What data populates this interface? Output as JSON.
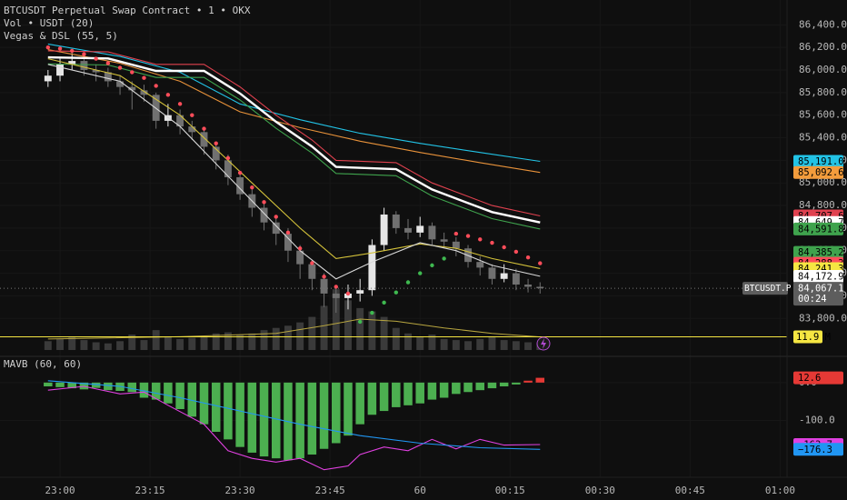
{
  "chart_data": [
    {
      "type": "candlestick",
      "title": "BTCUSDT Perpetual Swap Contract • 1 • OKX",
      "indicators": [
        "Vol • USDT (20)",
        "Vegas & DSL (55, 5)"
      ],
      "x": [
        -2,
        0,
        2,
        4,
        6,
        8,
        10,
        12,
        14,
        16,
        18,
        20,
        22,
        24,
        26,
        28,
        30,
        32,
        34,
        36,
        38,
        40,
        42,
        44,
        46,
        48,
        50,
        52,
        54,
        56,
        58,
        60,
        62,
        64,
        66,
        68,
        70,
        72,
        74,
        76,
        78,
        80
      ],
      "open": [
        85900,
        85950,
        86050,
        86080,
        86000,
        85980,
        85900,
        85850,
        85820,
        85780,
        85550,
        85600,
        85500,
        85450,
        85320,
        85200,
        85050,
        84900,
        84780,
        84650,
        84550,
        84400,
        84280,
        84150,
        84020,
        83980,
        84020,
        84050,
        84450,
        84720,
        84600,
        84560,
        84620,
        84500,
        84480,
        84420,
        84300,
        84250,
        84150,
        84200,
        84100,
        84080
      ],
      "high": [
        86000,
        86100,
        86150,
        86120,
        86050,
        86020,
        85950,
        85900,
        85870,
        85800,
        85700,
        85650,
        85550,
        85480,
        85360,
        85250,
        85080,
        84950,
        84820,
        84700,
        84600,
        84450,
        84320,
        84200,
        84080,
        84100,
        84150,
        84500,
        84780,
        84750,
        84680,
        84700,
        84650,
        84560,
        84520,
        84450,
        84350,
        84280,
        84280,
        84240,
        84150,
        84120
      ],
      "low": [
        85850,
        85900,
        86000,
        85950,
        85900,
        85850,
        85780,
        85650,
        85720,
        85480,
        85500,
        85430,
        85380,
        85250,
        85120,
        84980,
        84850,
        84700,
        84580,
        84450,
        84300,
        84150,
        84050,
        83900,
        83850,
        83880,
        83950,
        84000,
        84400,
        84550,
        84500,
        84520,
        84450,
        84420,
        84350,
        84250,
        84180,
        84100,
        84120,
        84050,
        84030,
        84020
      ],
      "close": [
        85950,
        86050,
        86080,
        86000,
        85980,
        85900,
        85850,
        85820,
        85780,
        85550,
        85600,
        85500,
        85450,
        85320,
        85200,
        85050,
        84900,
        84780,
        84650,
        84550,
        84400,
        84280,
        84150,
        84020,
        83980,
        84020,
        84050,
        84450,
        84720,
        84600,
        84560,
        84620,
        84500,
        84480,
        84420,
        84300,
        84250,
        84150,
        84200,
        84100,
        84080,
        84067.1
      ],
      "up_color": "#e6e6e6",
      "down_color": "#707070",
      "volume": [
        8,
        10,
        12,
        9,
        7,
        6,
        8,
        14,
        9,
        18,
        12,
        10,
        11,
        13,
        15,
        16,
        14,
        15,
        18,
        20,
        22,
        25,
        30,
        40,
        55,
        45,
        38,
        35,
        30,
        20,
        15,
        12,
        14,
        10,
        9,
        8,
        10,
        12,
        9,
        8,
        7,
        6
      ],
      "volume_color": "#3a3a3a",
      "volume_lim": [
        0,
        70
      ],
      "volume_ma": {
        "x": [
          -2,
          20,
          36,
          44,
          50,
          56,
          64,
          72,
          80
        ],
        "values": [
          10,
          12,
          15,
          22,
          28,
          26,
          20,
          15,
          11.9
        ],
        "color": "#b8a640"
      },
      "volume_label": {
        "value": 11.9,
        "label": "11.9 M",
        "color": "#f5e642"
      },
      "series": [
        {
          "style": "line",
          "color": "#22c3e6",
          "x": [
            -2,
            10,
            20,
            30,
            40,
            50,
            60,
            70,
            80
          ],
          "values": [
            86230,
            86120,
            85980,
            85700,
            85560,
            85440,
            85350,
            85270,
            85191.0
          ]
        },
        {
          "style": "line",
          "color": "#e8923a",
          "x": [
            -2,
            10,
            20,
            30,
            40,
            50,
            60,
            70,
            80
          ],
          "values": [
            86180,
            86060,
            85900,
            85630,
            85490,
            85370,
            85270,
            85180,
            85092.6
          ]
        },
        {
          "style": "line",
          "color": "#e0414f",
          "x": [
            -2,
            8,
            16,
            24,
            30,
            36,
            42,
            46,
            56,
            62,
            66,
            72,
            80
          ],
          "values": [
            86170,
            86160,
            86050,
            86050,
            85850,
            85600,
            85380,
            85200,
            85180,
            85000,
            84920,
            84800,
            84707.6
          ]
        },
        {
          "style": "thick",
          "color": "#ffffff",
          "x": [
            -2,
            8,
            16,
            24,
            30,
            36,
            42,
            46,
            56,
            62,
            66,
            72,
            80
          ],
          "values": [
            86112,
            86102,
            85992,
            85992,
            85792,
            85542,
            85322,
            85142,
            85122,
            84942,
            84862,
            84742,
            84649.7
          ]
        },
        {
          "style": "line",
          "color": "#3fa34d",
          "x": [
            -2,
            8,
            16,
            24,
            30,
            36,
            42,
            46,
            56,
            62,
            66,
            72,
            80
          ],
          "values": [
            86054,
            86044,
            85934,
            85934,
            85734,
            85484,
            85264,
            85084,
            85064,
            84884,
            84804,
            84684,
            84591.8
          ]
        },
        {
          "style": "line",
          "color": "#d4c23a",
          "x": [
            -2,
            10,
            20,
            30,
            40,
            46,
            52,
            60,
            66,
            72,
            80
          ],
          "values": [
            86100,
            85950,
            85600,
            85100,
            84600,
            84330,
            84380,
            84460,
            84420,
            84330,
            84241.3
          ]
        },
        {
          "style": "line",
          "color": "#d8d8d8",
          "x": [
            -2,
            10,
            20,
            30,
            40,
            46,
            52,
            60,
            66,
            72,
            80
          ],
          "values": [
            86050,
            85900,
            85500,
            84950,
            84400,
            84150,
            84300,
            84470,
            84400,
            84270,
            84172.9
          ]
        },
        {
          "style": "dots",
          "color": "#ff4d5a",
          "x": [
            -2,
            0,
            2,
            4,
            6,
            8,
            10,
            12,
            14,
            16,
            18,
            20,
            22,
            24,
            26,
            28,
            30,
            32,
            34,
            36,
            38,
            40,
            42,
            44,
            46,
            48
          ],
          "values": [
            86200,
            86190,
            86170,
            86140,
            86100,
            86060,
            86020,
            85980,
            85930,
            85860,
            85780,
            85700,
            85600,
            85480,
            85350,
            85220,
            85090,
            84960,
            84830,
            84700,
            84560,
            84420,
            84290,
            84170,
            84080,
            84020
          ]
        },
        {
          "style": "dots",
          "color": "#3fb950",
          "x": [
            50,
            52,
            54,
            56,
            58,
            60,
            62,
            64
          ],
          "values": [
            83770,
            83850,
            83940,
            84030,
            84120,
            84200,
            84270,
            84330
          ]
        },
        {
          "style": "dots",
          "color": "#ff4d5a",
          "x": [
            66,
            68,
            70,
            72,
            74,
            76,
            78,
            80
          ],
          "values": [
            84550,
            84530,
            84500,
            84470,
            84430,
            84390,
            84340,
            84288.3
          ]
        }
      ],
      "price_labels": [
        {
          "value": 85191.0,
          "label": "85,191.0",
          "color": "#22c3e6"
        },
        {
          "value": 85092.6,
          "label": "85,092.6",
          "color": "#f39c3c"
        },
        {
          "value": 84707.6,
          "label": "84,707.6",
          "color": "#e0414f"
        },
        {
          "value": 84649.7,
          "label": "84,649.7",
          "color": "#ffffff"
        },
        {
          "value": 84591.8,
          "label": "84,591.8",
          "color": "#3fa34d"
        },
        {
          "value": 84385.2,
          "label": "84,385.2",
          "color": "#3fa34d"
        },
        {
          "value": 84288.3,
          "label": "84,288.3",
          "color": "#ff4d5a"
        },
        {
          "value": 84241.3,
          "label": "84,241.3",
          "color": "#f5e642"
        },
        {
          "value": 84172.9,
          "label": "84,172.9",
          "color": "#ffffff"
        }
      ],
      "last_price": {
        "value": 84067.1,
        "label": "84,067.1",
        "symbol": "BTCUSDT.P",
        "countdown": "00:24",
        "color": "#5d5d5d"
      },
      "xlim": [
        -10,
        121
      ],
      "xticks": [
        {
          "value": 0,
          "label": "23:00"
        },
        {
          "value": 15,
          "label": "23:15"
        },
        {
          "value": 30,
          "label": "23:30"
        },
        {
          "value": 45,
          "label": "23:45"
        },
        60,
        {
          "value": 75,
          "label": "00:15"
        },
        {
          "value": 90,
          "label": "00:30"
        },
        {
          "value": 105,
          "label": "00:45"
        },
        {
          "value": 120,
          "label": "01:00"
        }
      ],
      "ylim": [
        83480,
        86620
      ],
      "yticks": [
        {
          "value": 83800,
          "label": "83,800.0"
        },
        {
          "value": 84000,
          "label": "84,000.0"
        },
        {
          "value": 84200,
          "label": "84,200.0"
        },
        {
          "value": 84400,
          "label": "84,400.0"
        },
        {
          "value": 84600,
          "label": "84,600.0"
        },
        {
          "value": 84800,
          "label": "84,800.0"
        },
        {
          "value": 85000,
          "label": "85,000.0"
        },
        {
          "value": 85200,
          "label": "85,200.0"
        },
        {
          "value": 85400,
          "label": "85,400.0"
        },
        {
          "value": 85600,
          "label": "85,600.0"
        },
        {
          "value": 85800,
          "label": "85,800.0"
        },
        {
          "value": 86000,
          "label": "86,000.0"
        },
        {
          "value": 86200,
          "label": "86,200.0"
        },
        {
          "value": 86400,
          "label": "86,400.0"
        }
      ]
    },
    {
      "type": "bar",
      "title": "MAVB (60, 60)",
      "x": [
        -2,
        0,
        2,
        4,
        6,
        8,
        10,
        12,
        14,
        16,
        18,
        20,
        22,
        24,
        26,
        28,
        30,
        32,
        34,
        36,
        38,
        40,
        42,
        44,
        46,
        48,
        50,
        52,
        54,
        56,
        58,
        60,
        62,
        64,
        66,
        68,
        70,
        72,
        74,
        76,
        78,
        80
      ],
      "values": [
        -10,
        -12,
        -15,
        -18,
        -14,
        -20,
        -22,
        -25,
        -40,
        -45,
        -55,
        -70,
        -90,
        -110,
        -130,
        -150,
        -170,
        -185,
        -195,
        -200,
        -205,
        -200,
        -190,
        -175,
        -160,
        -140,
        -110,
        -85,
        -75,
        -65,
        -60,
        -55,
        -45,
        -40,
        -30,
        -25,
        -20,
        -15,
        -10,
        -5,
        5,
        12.6
      ],
      "positive_color": "#e53935",
      "negative_color": "#4caf50",
      "series": [
        {
          "style": "line",
          "color": "#e040e0",
          "x": [
            -2,
            4,
            10,
            14,
            18,
            24,
            28,
            32,
            36,
            40,
            44,
            48,
            50,
            54,
            58,
            62,
            66,
            70,
            74,
            80
          ],
          "values": [
            -20,
            -10,
            -30,
            -25,
            -60,
            -110,
            -180,
            -200,
            -210,
            -200,
            -230,
            -220,
            -190,
            -170,
            -180,
            -150,
            -175,
            -150,
            -165,
            -163.7
          ]
        },
        {
          "style": "line",
          "color": "#2196f3",
          "x": [
            -2,
            10,
            20,
            30,
            40,
            50,
            60,
            70,
            80
          ],
          "values": [
            5,
            -10,
            -40,
            -75,
            -110,
            -140,
            -160,
            -172,
            -176.3
          ]
        }
      ],
      "price_labels": [
        {
          "value": 12.6,
          "label": "12.6",
          "color": "#e53935"
        },
        {
          "value": -163.7,
          "label": "−163.7",
          "color": "#e040e0"
        },
        {
          "value": -176.3,
          "label": "−176.3",
          "color": "#2196f3"
        }
      ],
      "ylim": [
        -250,
        62
      ],
      "yticks": [
        {
          "value": 0,
          "label": "0.0"
        },
        {
          "value": -100,
          "label": "-100.0"
        }
      ]
    }
  ]
}
